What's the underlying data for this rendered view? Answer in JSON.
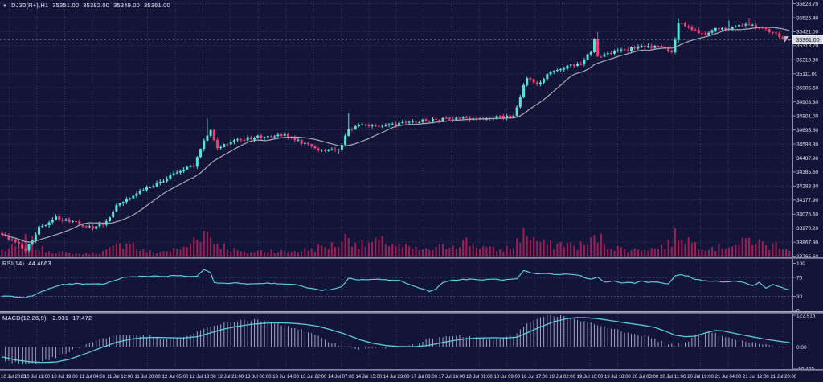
{
  "header": {
    "symbol": "DJ30(R+),H1",
    "open": "35351.00",
    "high": "35382.00",
    "low": "35349.00",
    "close": "35361.00"
  },
  "panes": {
    "rsi": {
      "name": "RSI(14)",
      "value": "44.4663",
      "level_labels": [
        "100",
        "70",
        "30",
        "0"
      ]
    },
    "macd": {
      "name": "MACD(12,26,9)",
      "main_value": "-2.931",
      "signal_value": "17.472",
      "axis_labels": [
        "122.916",
        "0.00",
        "-90.455"
      ]
    }
  },
  "price_axis": {
    "labels": [
      "35628.70",
      "35526.40",
      "35421.00",
      "35318.70",
      "35213.30",
      "35111.00",
      "35005.60",
      "34903.30",
      "34801.00",
      "34695.60",
      "34593.30",
      "34487.90",
      "34385.60",
      "34283.30",
      "34177.90",
      "34075.60",
      "33970.20",
      "33867.90",
      "33765.60"
    ],
    "current": "35361.00"
  },
  "time_axis": {
    "labels": [
      "10 Jul 2023",
      "10 Jul 11:00",
      "10 Jul 19:00",
      "11 Jul 04:00",
      "11 Jul 12:00",
      "11 Jul 20:00",
      "12 Jul 05:00",
      "12 Jul 13:00",
      "12 Jul 21:00",
      "13 Jul 06:00",
      "13 Jul 14:00",
      "13 Jul 22:00",
      "14 Jul 07:00",
      "14 Jul 15:00",
      "14 Jul 23:00",
      "17 Jul 08:00",
      "17 Jul 16:00",
      "18 Jul 01:00",
      "18 Jul 09:00",
      "18 Jul 17:00",
      "19 Jul 02:00",
      "19 Jul 10:00",
      "19 Jul 18:00",
      "20 Jul 03:00",
      "20 Jul 11:00",
      "20 Jul 19:00",
      "21 Jul 04:00",
      "21 Jul 12:00",
      "21 Jul 20:00"
    ]
  },
  "colors": {
    "background": "#131538",
    "grid": "#343760",
    "level_dash": "#4a4d78",
    "bull": "#57e3d8",
    "bear": "#f23c72",
    "volume": "#a11d55",
    "ma_line": "#a9aab6",
    "indicator_line": "#5fc9d8",
    "macd_histogram": "#b9bdd8",
    "axis_text": "#e4e5ef",
    "axis_line": "#8b8da6",
    "price_tag_bg": "#d8d9e2",
    "price_tag_text": "#12142f",
    "bid_line": "#8e90a8"
  },
  "chart_data": {
    "type": "candlestick",
    "symbol": "DJ30(R+)",
    "timeframe": "H1",
    "bars": 235,
    "ohlc_last": {
      "open": 35351.0,
      "high": 35382.0,
      "low": 35349.0,
      "close": 35361.0
    },
    "price_range": [
      33765.6,
      35628.7
    ],
    "price_close_path": [
      [
        0,
        33930
      ],
      [
        3,
        33880
      ],
      [
        7,
        33805
      ],
      [
        11,
        33975
      ],
      [
        16,
        34050
      ],
      [
        21,
        34020
      ],
      [
        27,
        33965
      ],
      [
        31,
        34020
      ],
      [
        34,
        34140
      ],
      [
        42,
        34260
      ],
      [
        48,
        34330
      ],
      [
        53,
        34400
      ],
      [
        57,
        34430
      ],
      [
        60,
        34620
      ],
      [
        62,
        34700
      ],
      [
        64,
        34560
      ],
      [
        68,
        34615
      ],
      [
        76,
        34645
      ],
      [
        84,
        34660
      ],
      [
        88,
        34615
      ],
      [
        94,
        34555
      ],
      [
        100,
        34545
      ],
      [
        103,
        34700
      ],
      [
        107,
        34740
      ],
      [
        112,
        34720
      ],
      [
        118,
        34740
      ],
      [
        126,
        34770
      ],
      [
        136,
        34780
      ],
      [
        146,
        34790
      ],
      [
        152,
        34800
      ],
      [
        154,
        34950
      ],
      [
        156,
        35080
      ],
      [
        159,
        35030
      ],
      [
        163,
        35120
      ],
      [
        167,
        35160
      ],
      [
        172,
        35190
      ],
      [
        175,
        35280
      ],
      [
        176,
        35380
      ],
      [
        177,
        35230
      ],
      [
        180,
        35260
      ],
      [
        186,
        35290
      ],
      [
        191,
        35320
      ],
      [
        197,
        35300
      ],
      [
        199,
        35260
      ],
      [
        201,
        35490
      ],
      [
        204,
        35450
      ],
      [
        208,
        35400
      ],
      [
        212,
        35450
      ],
      [
        215,
        35430
      ],
      [
        219,
        35470
      ],
      [
        222,
        35480
      ],
      [
        226,
        35450
      ],
      [
        229,
        35410
      ],
      [
        232,
        35380
      ],
      [
        234,
        35361
      ]
    ],
    "wick_high_spikes": [
      [
        61,
        34780
      ],
      [
        103,
        34820
      ],
      [
        177,
        35420
      ],
      [
        201,
        35516
      ],
      [
        216,
        35505
      ],
      [
        222,
        35520
      ]
    ],
    "wick_low_spikes": [
      [
        7,
        33790
      ],
      [
        100,
        34520
      ]
    ],
    "volume_rel_path": [
      [
        0,
        25
      ],
      [
        5,
        40
      ],
      [
        8,
        80
      ],
      [
        10,
        35
      ],
      [
        15,
        20
      ],
      [
        20,
        12
      ],
      [
        25,
        10
      ],
      [
        30,
        18
      ],
      [
        35,
        45
      ],
      [
        38,
        70
      ],
      [
        40,
        30
      ],
      [
        45,
        15
      ],
      [
        50,
        25
      ],
      [
        55,
        35
      ],
      [
        58,
        90
      ],
      [
        61,
        100
      ],
      [
        63,
        60
      ],
      [
        68,
        30
      ],
      [
        72,
        15
      ],
      [
        76,
        20
      ],
      [
        80,
        25
      ],
      [
        84,
        18
      ],
      [
        88,
        22
      ],
      [
        92,
        30
      ],
      [
        96,
        40
      ],
      [
        100,
        50
      ],
      [
        103,
        85
      ],
      [
        106,
        45
      ],
      [
        110,
        55
      ],
      [
        114,
        60
      ],
      [
        118,
        40
      ],
      [
        122,
        30
      ],
      [
        126,
        25
      ],
      [
        130,
        35
      ],
      [
        134,
        50
      ],
      [
        138,
        60
      ],
      [
        141,
        45
      ],
      [
        145,
        30
      ],
      [
        148,
        25
      ],
      [
        152,
        40
      ],
      [
        154,
        85
      ],
      [
        156,
        95
      ],
      [
        158,
        70
      ],
      [
        161,
        50
      ],
      [
        164,
        45
      ],
      [
        167,
        55
      ],
      [
        170,
        40
      ],
      [
        174,
        50
      ],
      [
        177,
        80
      ],
      [
        180,
        45
      ],
      [
        184,
        30
      ],
      [
        188,
        25
      ],
      [
        191,
        35
      ],
      [
        194,
        30
      ],
      [
        197,
        45
      ],
      [
        199,
        60
      ],
      [
        201,
        100
      ],
      [
        203,
        75
      ],
      [
        206,
        50
      ],
      [
        210,
        40
      ],
      [
        213,
        35
      ],
      [
        216,
        50
      ],
      [
        219,
        45
      ],
      [
        222,
        70
      ],
      [
        225,
        55
      ],
      [
        228,
        40
      ],
      [
        231,
        50
      ],
      [
        234,
        30
      ]
    ],
    "rsi_range": [
      0,
      100
    ],
    "rsi_levels": [
      70,
      30
    ],
    "rsi_path": [
      [
        0,
        31
      ],
      [
        4,
        29
      ],
      [
        7,
        27
      ],
      [
        10,
        34
      ],
      [
        14,
        46
      ],
      [
        18,
        55
      ],
      [
        22,
        57
      ],
      [
        26,
        55
      ],
      [
        30,
        56
      ],
      [
        33,
        62
      ],
      [
        36,
        70
      ],
      [
        40,
        72
      ],
      [
        44,
        73
      ],
      [
        48,
        72
      ],
      [
        52,
        74
      ],
      [
        55,
        72
      ],
      [
        58,
        73
      ],
      [
        60,
        86
      ],
      [
        62,
        80
      ],
      [
        63,
        60
      ],
      [
        66,
        57
      ],
      [
        70,
        58
      ],
      [
        74,
        56
      ],
      [
        78,
        58
      ],
      [
        82,
        57
      ],
      [
        86,
        55
      ],
      [
        89,
        52
      ],
      [
        92,
        46
      ],
      [
        95,
        43
      ],
      [
        98,
        44
      ],
      [
        101,
        50
      ],
      [
        103,
        68
      ],
      [
        106,
        65
      ],
      [
        110,
        66
      ],
      [
        114,
        65
      ],
      [
        118,
        64
      ],
      [
        122,
        52
      ],
      [
        125,
        46
      ],
      [
        127,
        41
      ],
      [
        129,
        45
      ],
      [
        131,
        60
      ],
      [
        134,
        64
      ],
      [
        138,
        66
      ],
      [
        142,
        65
      ],
      [
        146,
        66
      ],
      [
        150,
        65
      ],
      [
        153,
        67
      ],
      [
        155,
        84
      ],
      [
        157,
        80
      ],
      [
        159,
        77
      ],
      [
        162,
        78
      ],
      [
        165,
        76
      ],
      [
        168,
        77
      ],
      [
        171,
        76
      ],
      [
        173,
        70
      ],
      [
        175,
        66
      ],
      [
        177,
        72
      ],
      [
        179,
        60
      ],
      [
        182,
        62
      ],
      [
        184,
        58
      ],
      [
        186,
        60
      ],
      [
        188,
        58
      ],
      [
        190,
        62
      ],
      [
        192,
        59
      ],
      [
        194,
        61
      ],
      [
        196,
        58
      ],
      [
        198,
        56
      ],
      [
        200,
        74
      ],
      [
        202,
        75
      ],
      [
        204,
        73
      ],
      [
        206,
        66
      ],
      [
        208,
        64
      ],
      [
        210,
        63
      ],
      [
        212,
        62
      ],
      [
        215,
        60
      ],
      [
        218,
        62
      ],
      [
        220,
        60
      ],
      [
        223,
        52
      ],
      [
        225,
        60
      ],
      [
        227,
        47
      ],
      [
        229,
        55
      ],
      [
        231,
        50
      ],
      [
        233,
        46
      ],
      [
        234,
        44.5
      ]
    ],
    "macd_range": [
      -90.455,
      122.916
    ],
    "macd_signal_path": [
      [
        0,
        -38
      ],
      [
        4,
        -50
      ],
      [
        8,
        -57
      ],
      [
        12,
        -60
      ],
      [
        16,
        -58
      ],
      [
        20,
        -48
      ],
      [
        26,
        -20
      ],
      [
        30,
        0
      ],
      [
        34,
        18
      ],
      [
        38,
        30
      ],
      [
        42,
        36
      ],
      [
        46,
        37
      ],
      [
        50,
        36
      ],
      [
        54,
        35
      ],
      [
        58,
        40
      ],
      [
        62,
        55
      ],
      [
        66,
        70
      ],
      [
        70,
        80
      ],
      [
        74,
        88
      ],
      [
        78,
        92
      ],
      [
        82,
        94
      ],
      [
        86,
        92
      ],
      [
        90,
        88
      ],
      [
        94,
        80
      ],
      [
        98,
        66
      ],
      [
        102,
        50
      ],
      [
        106,
        30
      ],
      [
        110,
        15
      ],
      [
        114,
        6
      ],
      [
        118,
        2
      ],
      [
        122,
        1
      ],
      [
        126,
        5
      ],
      [
        130,
        15
      ],
      [
        134,
        25
      ],
      [
        138,
        32
      ],
      [
        142,
        35
      ],
      [
        146,
        36
      ],
      [
        150,
        35
      ],
      [
        153,
        38
      ],
      [
        156,
        55
      ],
      [
        160,
        78
      ],
      [
        164,
        98
      ],
      [
        168,
        110
      ],
      [
        171,
        114
      ],
      [
        174,
        113
      ],
      [
        178,
        108
      ],
      [
        182,
        100
      ],
      [
        186,
        92
      ],
      [
        190,
        85
      ],
      [
        194,
        76
      ],
      [
        197,
        62
      ],
      [
        200,
        46
      ],
      [
        203,
        40
      ],
      [
        206,
        42
      ],
      [
        209,
        55
      ],
      [
        212,
        64
      ],
      [
        214,
        63
      ],
      [
        218,
        52
      ],
      [
        222,
        42
      ],
      [
        226,
        32
      ],
      [
        230,
        24
      ],
      [
        234,
        17.5
      ]
    ],
    "macd_main_path": [
      [
        0,
        -55
      ],
      [
        4,
        -62
      ],
      [
        8,
        -65
      ],
      [
        12,
        -55
      ],
      [
        16,
        -40
      ],
      [
        20,
        -18
      ],
      [
        24,
        5
      ],
      [
        28,
        25
      ],
      [
        32,
        40
      ],
      [
        36,
        48
      ],
      [
        40,
        45
      ],
      [
        44,
        40
      ],
      [
        48,
        32
      ],
      [
        52,
        30
      ],
      [
        56,
        45
      ],
      [
        60,
        70
      ],
      [
        64,
        88
      ],
      [
        68,
        98
      ],
      [
        72,
        104
      ],
      [
        76,
        103
      ],
      [
        80,
        95
      ],
      [
        84,
        85
      ],
      [
        88,
        70
      ],
      [
        92,
        50
      ],
      [
        96,
        28
      ],
      [
        100,
        10
      ],
      [
        104,
        -5
      ],
      [
        108,
        -8
      ],
      [
        112,
        -5
      ],
      [
        116,
        0
      ],
      [
        120,
        8
      ],
      [
        124,
        20
      ],
      [
        128,
        32
      ],
      [
        132,
        40
      ],
      [
        136,
        42
      ],
      [
        140,
        38
      ],
      [
        144,
        30
      ],
      [
        148,
        28
      ],
      [
        152,
        45
      ],
      [
        156,
        90
      ],
      [
        160,
        118
      ],
      [
        164,
        123
      ],
      [
        168,
        115
      ],
      [
        172,
        100
      ],
      [
        176,
        88
      ],
      [
        180,
        75
      ],
      [
        184,
        62
      ],
      [
        188,
        52
      ],
      [
        192,
        40
      ],
      [
        196,
        20
      ],
      [
        200,
        8
      ],
      [
        204,
        25
      ],
      [
        206,
        45
      ],
      [
        208,
        58
      ],
      [
        210,
        60
      ],
      [
        212,
        55
      ],
      [
        216,
        38
      ],
      [
        220,
        24
      ],
      [
        224,
        14
      ],
      [
        228,
        7
      ],
      [
        231,
        2
      ],
      [
        234,
        -3
      ]
    ],
    "ma_period": 16
  }
}
